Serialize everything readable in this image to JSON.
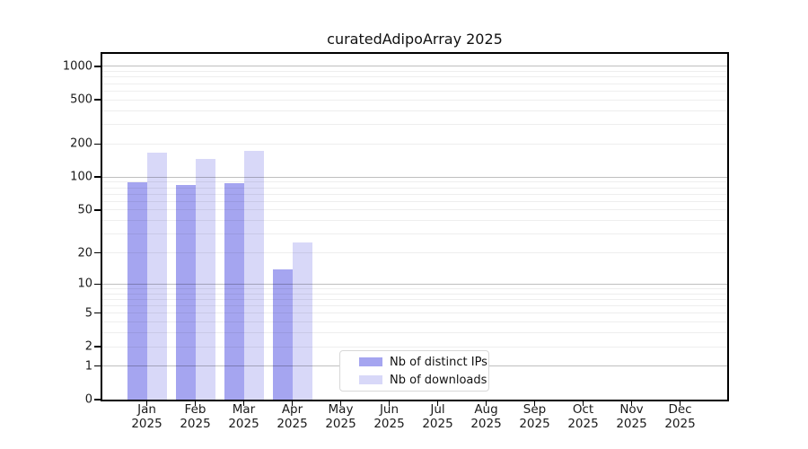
{
  "figure": {
    "title": "curatedAdipoArray 2025",
    "background": "#ffffff"
  },
  "legend": {
    "items": [
      {
        "label": "Nb of distinct IPs",
        "color": "#a5a5f0"
      },
      {
        "label": "Nb of downloads",
        "color": "#d8d8f8"
      }
    ]
  },
  "chart_data": {
    "type": "bar",
    "title": "curatedAdipoArray 2025",
    "x_categories": [
      "Jan 2025",
      "Feb 2025",
      "Mar 2025",
      "Apr 2025",
      "May 2025",
      "Jun 2025",
      "Jul 2025",
      "Aug 2025",
      "Sep 2025",
      "Oct 2025",
      "Nov 2025",
      "Dec 2025"
    ],
    "months": [
      "Jan",
      "Feb",
      "Mar",
      "Apr",
      "May",
      "Jun",
      "Jul",
      "Aug",
      "Sep",
      "Oct",
      "Nov",
      "Dec"
    ],
    "year": "2025",
    "series": [
      {
        "name": "Nb of distinct IPs",
        "color": "#a5a5f0",
        "values": [
          90,
          84,
          88,
          14,
          0,
          0,
          0,
          0,
          0,
          0,
          0,
          0
        ]
      },
      {
        "name": "Nb of downloads",
        "color": "#d8d8f8",
        "values": [
          165,
          145,
          172,
          25,
          0,
          0,
          0,
          0,
          0,
          0,
          0,
          0
        ]
      }
    ],
    "y_axis": {
      "scale": "log10(1+x)",
      "ticks": [
        0,
        1,
        2,
        5,
        10,
        20,
        50,
        100,
        200,
        500,
        1000
      ],
      "major_gridlines": [
        1,
        10,
        100,
        1000
      ],
      "minor_gridlines": [
        2,
        3,
        4,
        5,
        6,
        7,
        8,
        9,
        20,
        30,
        40,
        50,
        60,
        70,
        80,
        90,
        200,
        300,
        400,
        500,
        600,
        700,
        800,
        900
      ],
      "ylim": [
        0,
        1300
      ]
    },
    "grid": true,
    "legend_position": "inside-bottom-center"
  },
  "colors": {
    "axis": "#000000",
    "text": "#1a1a1a",
    "grid_minor": "rgba(0,0,0,0.065)",
    "grid_major": "rgba(0,0,0,0.25)",
    "legend_border": "#d8d8d8"
  }
}
